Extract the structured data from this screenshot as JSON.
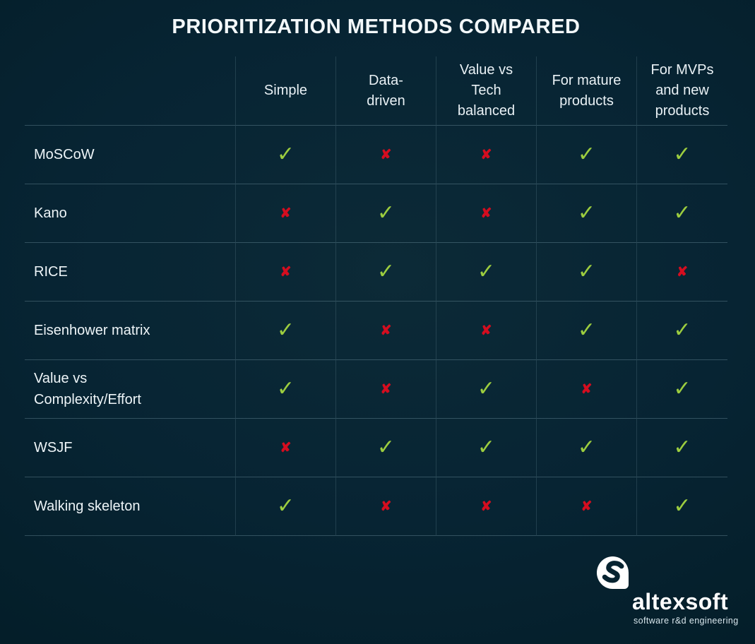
{
  "title": "PRIORITIZATION METHODS COMPARED",
  "chart_data": {
    "type": "table",
    "title": "PRIORITIZATION METHODS COMPARED",
    "columns": [
      "Simple",
      "Data-driven",
      "Value vs Tech balanced",
      "For mature products",
      "For MVPs and new products"
    ],
    "rows": [
      {
        "method": "MoSCoW",
        "values": [
          true,
          false,
          false,
          true,
          true
        ]
      },
      {
        "method": "Kano",
        "values": [
          false,
          true,
          false,
          true,
          true
        ]
      },
      {
        "method": "RICE",
        "values": [
          false,
          true,
          true,
          true,
          false
        ]
      },
      {
        "method": "Eisenhower matrix",
        "values": [
          true,
          false,
          false,
          true,
          true
        ]
      },
      {
        "method": "Value vs Complexity/Effort",
        "values": [
          true,
          false,
          true,
          false,
          true
        ]
      },
      {
        "method": "WSJF",
        "values": [
          false,
          true,
          true,
          true,
          true
        ]
      },
      {
        "method": "Walking skeleton",
        "values": [
          true,
          false,
          false,
          false,
          true
        ]
      }
    ],
    "legend": {
      "true_mark": "check",
      "false_mark": "cross"
    }
  },
  "table": {
    "header_display": [
      "Simple",
      "Data-\ndriven",
      "Value vs\nTech\nbalanced",
      "For mature\nproducts",
      "For MVPs\nand new\nproducts"
    ],
    "row_label_display": [
      "MoSCoW",
      "Kano",
      "RICE",
      "Eisenhower matrix",
      "Value vs\nComplexity/Effort",
      "WSJF",
      "Walking skeleton"
    ],
    "marks": {
      "check": "✓",
      "cross": "✘"
    }
  },
  "colors": {
    "background": "#062330",
    "check_green": "#9ccd3f",
    "cross_red": "#d40d1f",
    "text": "#ecf4f7"
  },
  "logo": {
    "brand": "altexsoft",
    "tagline": "software r&d engineering"
  }
}
